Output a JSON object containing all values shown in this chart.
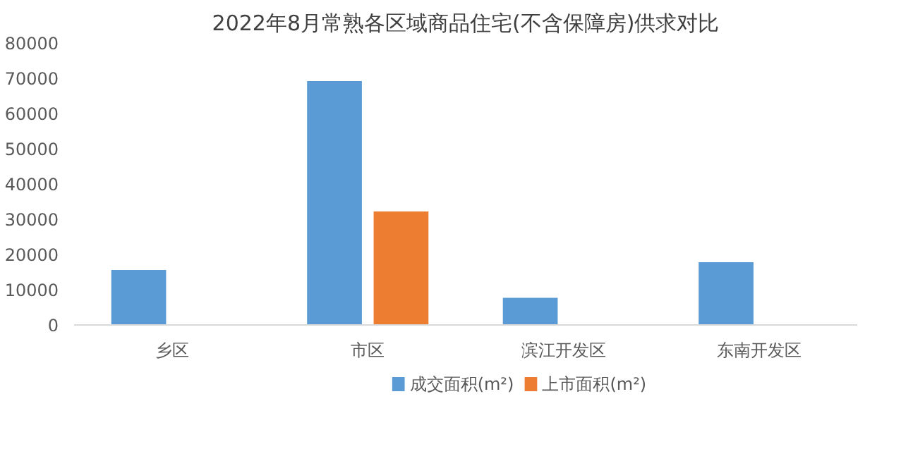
{
  "chart_data": {
    "type": "bar",
    "title": "2022年8月常熟各区域商品住宅(不含保障房)供求对比",
    "categories": [
      "乡区",
      "市区",
      "滨江开发区",
      "东南开发区"
    ],
    "series": [
      {
        "name": "成交面积(m²)",
        "color": "#5b9bd5",
        "values": [
          15600,
          69200,
          7700,
          17800
        ]
      },
      {
        "name": "上市面积(m²)",
        "color": "#ed7d31",
        "values": [
          null,
          32200,
          null,
          null
        ]
      }
    ],
    "ylim": [
      0,
      80000
    ],
    "yticks": [
      0,
      10000,
      20000,
      30000,
      40000,
      50000,
      60000,
      70000,
      80000
    ],
    "grid": false,
    "legend": "bottom"
  }
}
